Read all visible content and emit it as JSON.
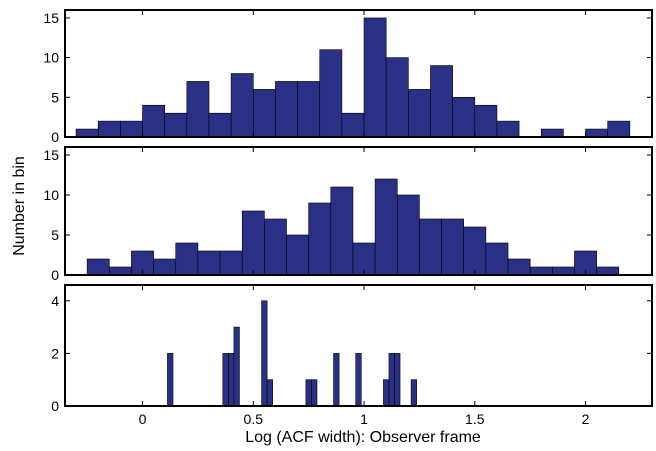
{
  "chart_data": {
    "type": "bar",
    "xlabel": "Log (ACF width): Observer frame",
    "ylabel": "Number in bin",
    "xlim": [
      -0.35,
      2.3
    ],
    "x_ticks": [
      0,
      0.5,
      1,
      1.5,
      2
    ],
    "x_tick_labels": [
      "0",
      "0.5",
      "1",
      "1.5",
      "2"
    ],
    "bar_color": "#2b3087",
    "panels": [
      {
        "ylim": [
          0,
          16
        ],
        "y_ticks": [
          0,
          5,
          10,
          15
        ],
        "y_tick_labels": [
          "0",
          "5",
          "10",
          "15"
        ],
        "bin_width": 0.1,
        "x": [
          -0.25,
          -0.15,
          -0.05,
          0.05,
          0.15,
          0.25,
          0.35,
          0.45,
          0.55,
          0.65,
          0.75,
          0.85,
          0.95,
          1.05,
          1.15,
          1.25,
          1.35,
          1.45,
          1.55,
          1.65,
          1.75,
          1.85,
          1.95,
          2.05,
          2.15
        ],
        "values": [
          1,
          2,
          2,
          4,
          3,
          7,
          3,
          8,
          6,
          7,
          7,
          11,
          3,
          15,
          10,
          6,
          9,
          5,
          4,
          2,
          0,
          1,
          0,
          1,
          2
        ]
      },
      {
        "ylim": [
          0,
          16
        ],
        "y_ticks": [
          0,
          5,
          10,
          15
        ],
        "y_tick_labels": [
          "0",
          "5",
          "10",
          "15"
        ],
        "bin_width": 0.1,
        "x": [
          -0.2,
          -0.1,
          0.0,
          0.1,
          0.2,
          0.3,
          0.4,
          0.5,
          0.6,
          0.7,
          0.8,
          0.9,
          1.0,
          1.1,
          1.2,
          1.3,
          1.4,
          1.5,
          1.6,
          1.7,
          1.8,
          1.9,
          2.0,
          2.1
        ],
        "values": [
          2,
          1,
          3,
          2,
          4,
          3,
          3,
          8,
          7,
          5,
          9,
          11,
          4,
          12,
          10,
          7,
          7,
          6,
          4,
          2,
          1,
          1,
          3,
          1
        ]
      },
      {
        "ylim": [
          0,
          4.6
        ],
        "y_ticks": [
          0,
          2,
          4
        ],
        "y_tick_labels": [
          "0",
          "2",
          "4"
        ],
        "bin_width": 0.025,
        "x": [
          0.125,
          0.375,
          0.4,
          0.425,
          0.55,
          0.575,
          0.75,
          0.775,
          0.875,
          0.975,
          1.1,
          1.125,
          1.15,
          1.225
        ],
        "values": [
          2,
          2,
          2,
          3,
          4,
          1,
          1,
          1,
          2,
          2,
          1,
          2,
          2,
          1
        ]
      }
    ]
  }
}
